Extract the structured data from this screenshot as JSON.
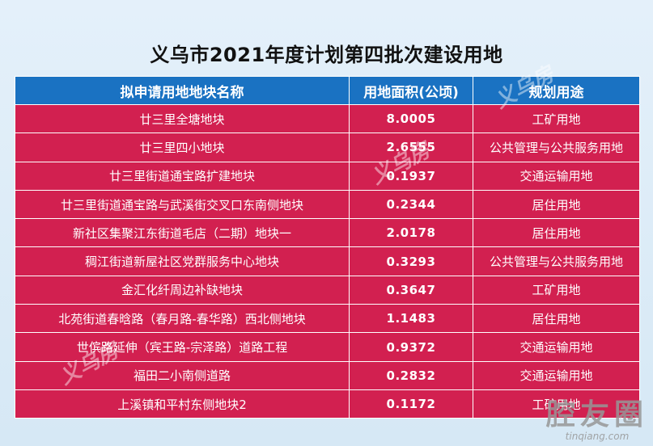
{
  "title": "义乌市2021年度计划第四批次建设用地",
  "table": {
    "headers": [
      "拟申请用地地块名称",
      "用地面积(公顷)",
      "规划用途"
    ],
    "rows": [
      {
        "name": "廿三里全塘地块",
        "area": "8.0005",
        "use": "工矿用地"
      },
      {
        "name": "廿三里四小地块",
        "area": "2.6555",
        "use": "公共管理与公共服务用地"
      },
      {
        "name": "廿三里街道通宝路扩建地块",
        "area": "0.1937",
        "use": "交通运输用地"
      },
      {
        "name": "廿三里街道通宝路与武溪街交叉口东南侧地块",
        "area": "0.2344",
        "use": "居住用地"
      },
      {
        "name": "新社区集聚江东街道毛店（二期）地块一",
        "area": "2.0178",
        "use": "居住用地"
      },
      {
        "name": "稠江街道新屋社区党群服务中心地块",
        "area": "0.3293",
        "use": "公共管理与公共服务用地"
      },
      {
        "name": "金汇化纤周边补缺地块",
        "area": "0.3647",
        "use": "工矿用地"
      },
      {
        "name": "北苑街道春晗路（春月路-春华路）西北侧地块",
        "area": "1.1483",
        "use": "居住用地"
      },
      {
        "name": "世傧路延伸（宾王路-宗泽路）道路工程",
        "area": "0.9372",
        "use": "交通运输用地"
      },
      {
        "name": "福田二小南侧道路",
        "area": "0.2832",
        "use": "交通运输用地"
      },
      {
        "name": "上溪镇和平村东侧地块2",
        "area": "0.1172",
        "use": "工矿用地"
      }
    ]
  },
  "watermark": {
    "text": "义乌房",
    "logo_main": "腔友圈",
    "logo_sub": "tinqiang.com"
  }
}
